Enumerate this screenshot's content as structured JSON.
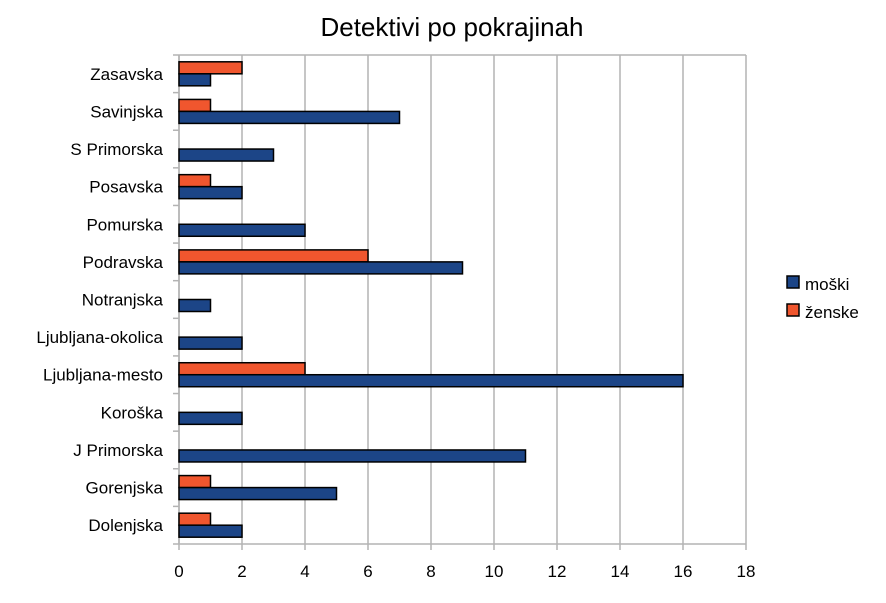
{
  "chart_data": {
    "type": "bar",
    "orientation": "horizontal",
    "title": "Detektivi po pokrajinah",
    "xlabel": "",
    "ylabel": "",
    "xlim": [
      0,
      18
    ],
    "xticks": [
      0,
      2,
      4,
      6,
      8,
      10,
      12,
      14,
      16,
      18
    ],
    "grid": true,
    "legend_position": "right",
    "categories": [
      "Zasavska",
      "Savinjska",
      "S Primorska",
      "Posavska",
      "Pomurska",
      "Podravska",
      "Notranjska",
      "Ljubljana-okolica",
      "Ljubljana-mesto",
      "Koroška",
      "J Primorska",
      "Gorenjska",
      "Dolenjska"
    ],
    "series": [
      {
        "name": "moški",
        "color": "#1c4587",
        "values": [
          1,
          7,
          3,
          2,
          4,
          9,
          1,
          2,
          16,
          2,
          11,
          5,
          2
        ]
      },
      {
        "name": "ženske",
        "color": "#f0562e",
        "values": [
          2,
          1,
          0,
          1,
          0,
          6,
          0,
          0,
          4,
          0,
          0,
          1,
          1
        ]
      }
    ]
  }
}
